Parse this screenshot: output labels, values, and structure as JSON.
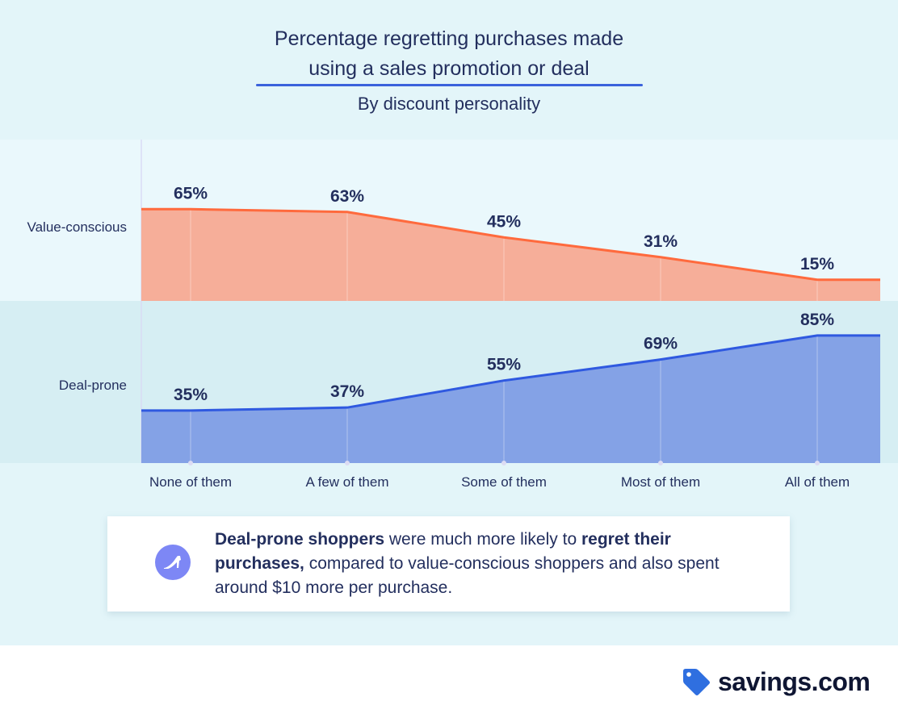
{
  "header": {
    "title_line1": "Percentage regretting purchases made",
    "title_line2": "using a sales promotion or deal",
    "subtitle": "By discount personality"
  },
  "chart_data": {
    "type": "area",
    "title": "Percentage regretting purchases made using a sales promotion or deal",
    "subtitle": "By discount personality",
    "xlabel": "",
    "ylabel": "",
    "categories": [
      "None of them",
      "A few of them",
      "Some of them",
      "Most of them",
      "All of them"
    ],
    "series": [
      {
        "name": "Value-conscious",
        "values": [
          65,
          63,
          45,
          31,
          15
        ],
        "labels": [
          "65%",
          "63%",
          "45%",
          "31%",
          "15%"
        ],
        "line_color": "#ff6a3d",
        "fill_color": "#f6ae99"
      },
      {
        "name": "Deal-prone",
        "values": [
          35,
          37,
          55,
          69,
          85
        ],
        "labels": [
          "35%",
          "37%",
          "55%",
          "69%",
          "85%"
        ],
        "line_color": "#2f59e0",
        "fill_color": "#84a2e6"
      }
    ],
    "ylim": [
      0,
      100
    ],
    "grid": "vertical",
    "layout": "stacked-bands"
  },
  "callout": {
    "icon": "high-heel-shoe-icon",
    "bold1": "Deal-prone shoppers",
    "text1": " were much more likely to ",
    "bold2": "regret their purchases,",
    "text2": " compared to value-conscious shoppers and also spent around $10 more per purchase."
  },
  "brand": {
    "icon": "price-tag-icon",
    "name": "savings.com",
    "color": "#2f6fe0"
  }
}
